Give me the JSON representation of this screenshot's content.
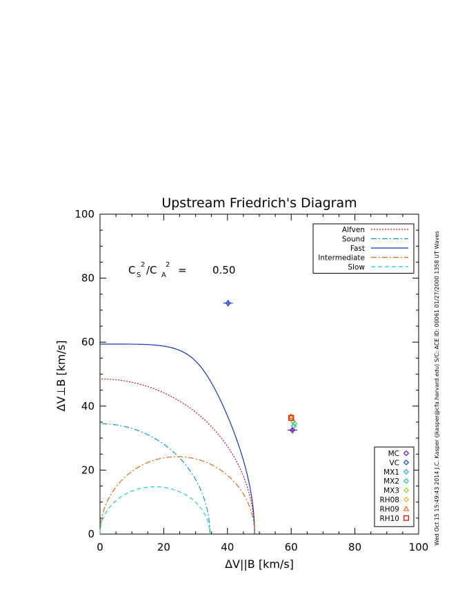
{
  "chart_data": {
    "type": "scatter",
    "title": "Upstream Friedrich's Diagram",
    "xlabel": "ΔV||B [km/s]",
    "ylabel": "ΔV⊥B [km/s]",
    "xlim": [
      0,
      100
    ],
    "ylim": [
      0,
      100
    ],
    "x_ticks": [
      "0",
      "20",
      "40",
      "60",
      "80",
      "100"
    ],
    "y_ticks": [
      "0",
      "20",
      "40",
      "60",
      "80",
      "100"
    ],
    "grid": false,
    "annotation": {
      "c_label": "C",
      "s_sub": "S",
      "a_sub": "A",
      "sup": "2",
      "equals": "=",
      "value": "0.50"
    },
    "curves": [
      {
        "name": "Alfven",
        "color": "#cc1111",
        "dash": "2,2",
        "kind": "alfven",
        "radius": 48.5
      },
      {
        "name": "Sound",
        "color": "#1199cc",
        "dash": "8,3,2,3",
        "kind": "sound",
        "radius": 34.5
      },
      {
        "name": "Fast",
        "color": "#1133bb",
        "dash": "",
        "kind": "fast",
        "radius": 59.4,
        "rx": 48.5
      },
      {
        "name": "Intermediate",
        "color": "#dd6611",
        "dash": "8,3,2,3",
        "kind": "intermediate",
        "radius": 24.2,
        "rx": 48.5
      },
      {
        "name": "Slow",
        "color": "#22ccbb",
        "dash": "6,4",
        "kind": "slow",
        "radius": 14.8,
        "rx": 34.5
      }
    ],
    "series": [
      {
        "name": "MC",
        "marker": "diamond",
        "color": "#6611aa",
        "x": 60.4,
        "y": 32.5
      },
      {
        "name": "VC",
        "marker": "diamond",
        "color": "#2244dd",
        "x": 40.2,
        "y": 72.2
      },
      {
        "name": "MX1",
        "marker": "diamond",
        "color": "#22aaee",
        "x": 60.8,
        "y": 33.8
      },
      {
        "name": "MX2",
        "marker": "diamond",
        "color": "#22cc88",
        "x": 61.0,
        "y": 34.5
      },
      {
        "name": "MX3",
        "marker": "diamond",
        "color": "#99cc22",
        "x": 60.6,
        "y": 35.2
      },
      {
        "name": "RH08",
        "marker": "diamond",
        "color": "#ffaa11",
        "x": 60.0,
        "y": 36.8
      },
      {
        "name": "RH09",
        "marker": "triangle",
        "color": "#ee6611",
        "x": 60.0,
        "y": 36.6
      },
      {
        "name": "RH10",
        "marker": "square",
        "color": "#dd2211",
        "x": 60.0,
        "y": 36.3
      }
    ],
    "errorbar_points": [
      {
        "x": 40.2,
        "y": 72.2,
        "color": "#2244dd"
      },
      {
        "x": 60.4,
        "y": 32.5,
        "color": "#6611aa"
      }
    ],
    "curve_legend_position": "top-right",
    "marker_legend_position": "bottom-right"
  },
  "side_note": "Wed Oct 15 15:49:43 2014  J.C. Kasper (jkasper@cfa.harvard.edu)  S/C: ACE ID: 00061 01/27/2000  1358 UT Waves"
}
